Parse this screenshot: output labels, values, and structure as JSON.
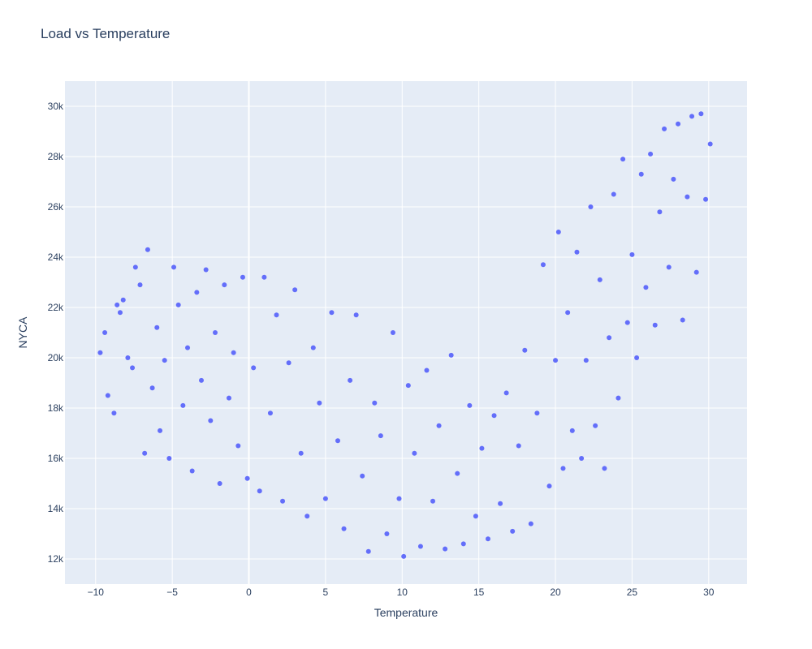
{
  "chart_data": {
    "type": "scatter",
    "title": "Load vs Temperature",
    "xlabel": "Temperature",
    "ylabel": "NYCA",
    "xlim": [
      -12,
      32.5
    ],
    "ylim": [
      11000,
      31000
    ],
    "x_ticks": [
      -10,
      -5,
      0,
      5,
      10,
      15,
      20,
      25,
      30
    ],
    "x_tick_labels": [
      "−10",
      "−5",
      "0",
      "5",
      "10",
      "15",
      "20",
      "25",
      "30"
    ],
    "y_ticks": [
      12000,
      14000,
      16000,
      18000,
      20000,
      22000,
      24000,
      26000,
      28000,
      30000
    ],
    "y_tick_labels": [
      "12k",
      "14k",
      "16k",
      "18k",
      "20k",
      "22k",
      "24k",
      "26k",
      "28k",
      "30k"
    ],
    "grid": true,
    "plot_background": "#e5ecf6",
    "marker_color": "#636efa",
    "series": [
      {
        "points": [
          [
            -9.7,
            20200
          ],
          [
            -9.4,
            21000
          ],
          [
            -9.2,
            18500
          ],
          [
            -8.8,
            17800
          ],
          [
            -8.6,
            22100
          ],
          [
            -8.4,
            21800
          ],
          [
            -8.2,
            22300
          ],
          [
            -7.9,
            20000
          ],
          [
            -7.6,
            19600
          ],
          [
            -7.4,
            23600
          ],
          [
            -7.1,
            22900
          ],
          [
            -6.8,
            16200
          ],
          [
            -6.6,
            24300
          ],
          [
            -6.3,
            18800
          ],
          [
            -6.0,
            21200
          ],
          [
            -5.8,
            17100
          ],
          [
            -5.5,
            19900
          ],
          [
            -5.2,
            16000
          ],
          [
            -4.9,
            23600
          ],
          [
            -4.6,
            22100
          ],
          [
            -4.3,
            18100
          ],
          [
            -4.0,
            20400
          ],
          [
            -3.7,
            15500
          ],
          [
            -3.4,
            22600
          ],
          [
            -3.1,
            19100
          ],
          [
            -2.8,
            23500
          ],
          [
            -2.5,
            17500
          ],
          [
            -2.2,
            21000
          ],
          [
            -1.9,
            15000
          ],
          [
            -1.6,
            22900
          ],
          [
            -1.3,
            18400
          ],
          [
            -1.0,
            20200
          ],
          [
            -0.7,
            16500
          ],
          [
            -0.4,
            23200
          ],
          [
            -0.1,
            15200
          ],
          [
            0.3,
            19600
          ],
          [
            0.7,
            14700
          ],
          [
            1.0,
            23200
          ],
          [
            1.4,
            17800
          ],
          [
            1.8,
            21700
          ],
          [
            2.2,
            14300
          ],
          [
            2.6,
            19800
          ],
          [
            3.0,
            22700
          ],
          [
            3.4,
            16200
          ],
          [
            3.8,
            13700
          ],
          [
            4.2,
            20400
          ],
          [
            4.6,
            18200
          ],
          [
            5.0,
            14400
          ],
          [
            5.4,
            21800
          ],
          [
            5.8,
            16700
          ],
          [
            6.2,
            13200
          ],
          [
            6.6,
            19100
          ],
          [
            7.0,
            21700
          ],
          [
            7.4,
            15300
          ],
          [
            7.8,
            12300
          ],
          [
            8.2,
            18200
          ],
          [
            8.6,
            16900
          ],
          [
            9.0,
            13000
          ],
          [
            9.4,
            21000
          ],
          [
            9.8,
            14400
          ],
          [
            10.1,
            12100
          ],
          [
            10.4,
            18900
          ],
          [
            10.8,
            16200
          ],
          [
            11.2,
            12500
          ],
          [
            11.6,
            19500
          ],
          [
            12.0,
            14300
          ],
          [
            12.4,
            17300
          ],
          [
            12.8,
            12400
          ],
          [
            13.2,
            20100
          ],
          [
            13.6,
            15400
          ],
          [
            14.0,
            12600
          ],
          [
            14.4,
            18100
          ],
          [
            14.8,
            13700
          ],
          [
            15.2,
            16400
          ],
          [
            15.6,
            12800
          ],
          [
            16.0,
            17700
          ],
          [
            16.4,
            14200
          ],
          [
            16.8,
            18600
          ],
          [
            17.2,
            13100
          ],
          [
            17.6,
            16500
          ],
          [
            18.0,
            20300
          ],
          [
            18.4,
            13400
          ],
          [
            18.8,
            17800
          ],
          [
            19.2,
            23700
          ],
          [
            19.6,
            14900
          ],
          [
            20.0,
            19900
          ],
          [
            20.2,
            25000
          ],
          [
            20.5,
            15600
          ],
          [
            20.8,
            21800
          ],
          [
            21.1,
            17100
          ],
          [
            21.4,
            24200
          ],
          [
            21.7,
            16000
          ],
          [
            22.0,
            19900
          ],
          [
            22.3,
            26000
          ],
          [
            22.6,
            17300
          ],
          [
            22.9,
            23100
          ],
          [
            23.2,
            15600
          ],
          [
            23.5,
            20800
          ],
          [
            23.8,
            26500
          ],
          [
            24.1,
            18400
          ],
          [
            24.4,
            27900
          ],
          [
            24.7,
            21400
          ],
          [
            25.0,
            24100
          ],
          [
            25.3,
            20000
          ],
          [
            25.6,
            27300
          ],
          [
            25.9,
            22800
          ],
          [
            26.2,
            28100
          ],
          [
            26.5,
            21300
          ],
          [
            26.8,
            25800
          ],
          [
            27.1,
            29100
          ],
          [
            27.4,
            23600
          ],
          [
            27.7,
            27100
          ],
          [
            28.0,
            29300
          ],
          [
            28.3,
            21500
          ],
          [
            28.6,
            26400
          ],
          [
            28.9,
            29600
          ],
          [
            29.2,
            23400
          ],
          [
            29.5,
            29700
          ],
          [
            29.8,
            26300
          ],
          [
            30.1,
            28500
          ]
        ]
      }
    ]
  }
}
